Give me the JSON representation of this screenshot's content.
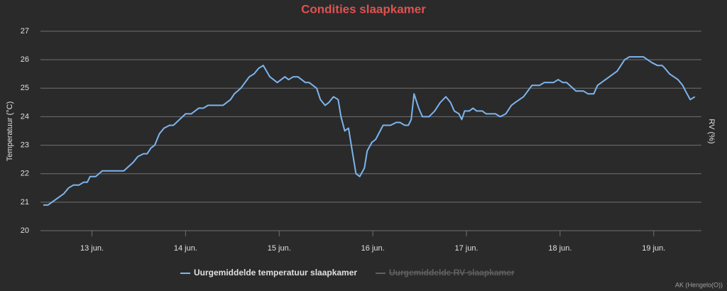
{
  "chart_data": {
    "type": "line",
    "title": "Condities slaapkamer",
    "y_label": "Temperatuur (°C)",
    "y2_label": "RV (%)",
    "credits": "AK (Hengelo(O))",
    "x": [
      12.48,
      12.53,
      12.7,
      12.75,
      12.8,
      12.86,
      12.91,
      12.95,
      12.98,
      13.04,
      13.11,
      13.34,
      13.44,
      13.49,
      13.55,
      13.59,
      13.63,
      13.67,
      13.72,
      13.77,
      13.83,
      13.87,
      14.0,
      14.06,
      14.14,
      14.19,
      14.24,
      14.4,
      14.48,
      14.52,
      14.59,
      14.68,
      14.73,
      14.78,
      14.83,
      14.9,
      14.98,
      15.06,
      15.1,
      15.15,
      15.2,
      15.28,
      15.32,
      15.4,
      15.44,
      15.49,
      15.53,
      15.58,
      15.63,
      15.66,
      15.7,
      15.74,
      15.78,
      15.82,
      15.86,
      15.91,
      15.94,
      15.99,
      16.03,
      16.11,
      16.19,
      16.25,
      16.29,
      16.34,
      16.38,
      16.41,
      16.44,
      16.49,
      16.53,
      16.6,
      16.66,
      16.72,
      16.78,
      16.83,
      16.87,
      16.92,
      16.95,
      16.98,
      17.03,
      17.07,
      17.11,
      17.17,
      17.21,
      17.31,
      17.36,
      17.42,
      17.48,
      17.52,
      17.61,
      17.7,
      17.78,
      17.83,
      17.93,
      17.98,
      18.03,
      18.07,
      18.17,
      18.25,
      18.3,
      18.36,
      18.4,
      18.61,
      18.69,
      18.74,
      18.89,
      18.98,
      19.04,
      19.09,
      19.12,
      19.17,
      19.26,
      19.31,
      19.34,
      19.39,
      19.44
    ],
    "series": [
      {
        "name": "Uurgemiddelde temperatuur slaapkamer",
        "color": "#7cb5ec",
        "values": [
          20.9,
          20.9,
          21.3,
          21.5,
          21.6,
          21.6,
          21.7,
          21.7,
          21.9,
          21.9,
          22.1,
          22.1,
          22.4,
          22.6,
          22.7,
          22.7,
          22.9,
          23.0,
          23.4,
          23.6,
          23.7,
          23.7,
          24.1,
          24.1,
          24.3,
          24.3,
          24.4,
          24.4,
          24.6,
          24.8,
          25.0,
          25.4,
          25.5,
          25.7,
          25.8,
          25.4,
          25.2,
          25.4,
          25.3,
          25.4,
          25.4,
          25.2,
          25.2,
          25.0,
          24.6,
          24.4,
          24.5,
          24.7,
          24.6,
          24.0,
          23.5,
          23.6,
          22.8,
          22.0,
          21.9,
          22.2,
          22.8,
          23.1,
          23.2,
          23.7,
          23.7,
          23.8,
          23.8,
          23.7,
          23.7,
          23.9,
          24.8,
          24.3,
          24.0,
          24.0,
          24.2,
          24.5,
          24.7,
          24.5,
          24.2,
          24.1,
          23.9,
          24.2,
          24.2,
          24.3,
          24.2,
          24.2,
          24.1,
          24.1,
          24.0,
          24.1,
          24.4,
          24.5,
          24.7,
          25.1,
          25.1,
          25.2,
          25.2,
          25.3,
          25.2,
          25.2,
          24.9,
          24.9,
          24.8,
          24.8,
          25.1,
          25.6,
          26.0,
          26.1,
          26.1,
          25.9,
          25.8,
          25.8,
          25.7,
          25.5,
          25.3,
          25.1,
          24.9,
          24.6,
          24.7
        ]
      },
      {
        "name": "Uurgemiddelde RV slaapkamer",
        "color": "#707073",
        "visible": false
      }
    ],
    "xlim": [
      12.45,
      19.51
    ],
    "xticks": [
      {
        "value": 13,
        "label": "13 jun."
      },
      {
        "value": 14,
        "label": "14 jun."
      },
      {
        "value": 15,
        "label": "15 jun."
      },
      {
        "value": 16,
        "label": "16 jun."
      },
      {
        "value": 17,
        "label": "17 jun."
      },
      {
        "value": 18,
        "label": "18 jun."
      },
      {
        "value": 19,
        "label": "19 jun."
      }
    ],
    "ylim": [
      20,
      27
    ],
    "yticks": [
      20,
      21,
      22,
      23,
      24,
      25,
      26,
      27
    ],
    "grid": true
  }
}
